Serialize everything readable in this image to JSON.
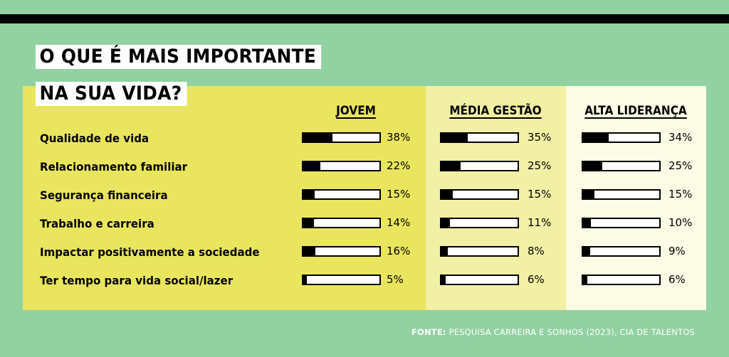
{
  "colors": {
    "background": "#92d1a2",
    "panel_jovem": "#e9e55f",
    "panel_media_gestao": "#f1f0a5",
    "panel_alta_lideranca": "#fcfbe6",
    "bar_fill": "#000000"
  },
  "source": {
    "label": "FONTE:",
    "text": "PESQUISA CARREIRA E SONHOS (2023), CIA DE TALENTOS"
  },
  "chart_data": {
    "type": "bar",
    "title_lines": [
      "O QUE É MAIS IMPORTANTE",
      "NA SUA VIDA?"
    ],
    "categories": [
      "Qualidade de vida",
      "Relacionamento familiar",
      "Segurança financeira",
      "Trabalho e carreira",
      "Impactar positivamente a sociedade",
      "Ter tempo para vida social/lazer"
    ],
    "series": [
      {
        "name": "JOVEM",
        "values": [
          38,
          22,
          15,
          14,
          16,
          5
        ],
        "labels": [
          "38%",
          "22%",
          "15%",
          "14%",
          "16%",
          "5%"
        ]
      },
      {
        "name": "MÉDIA GESTÃO",
        "values": [
          35,
          25,
          15,
          11,
          8,
          6
        ],
        "labels": [
          "35%",
          "25%",
          "15%",
          "11%",
          "8%",
          "6%"
        ]
      },
      {
        "name": "ALTA LIDERANÇA",
        "values": [
          34,
          25,
          15,
          10,
          9,
          6
        ],
        "labels": [
          "34%",
          "25%",
          "15%",
          "10%",
          "9%",
          "6%"
        ]
      }
    ],
    "xlim": [
      0,
      100
    ],
    "unit": "%"
  }
}
